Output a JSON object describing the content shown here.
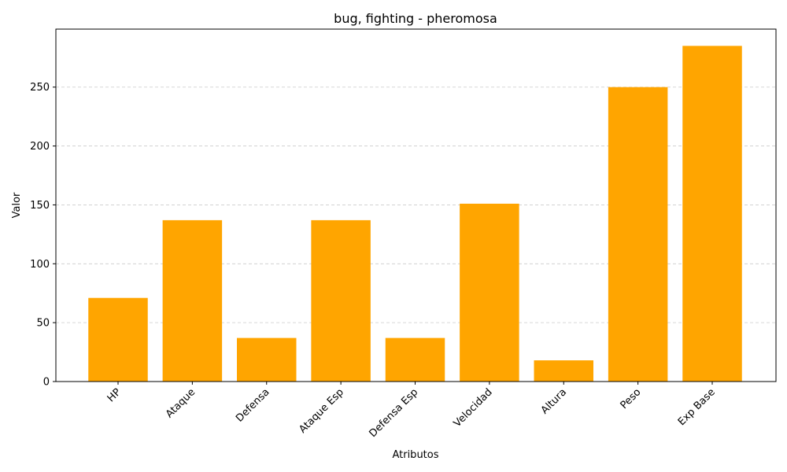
{
  "chart_data": {
    "type": "bar",
    "title": "bug, fighting - pheromosa",
    "xlabel": "Atributos",
    "ylabel": "Valor",
    "categories": [
      "HP",
      "Ataque",
      "Defensa",
      "Ataque Esp",
      "Defensa Esp",
      "Velocidad",
      "Altura",
      "Peso",
      "Exp Base"
    ],
    "values": [
      71,
      137,
      37,
      137,
      37,
      151,
      18,
      250,
      285
    ],
    "ylim": [
      0,
      299.25
    ],
    "yticks": [
      0,
      50,
      100,
      150,
      200,
      250
    ],
    "grid": "y-dashed",
    "bar_color": "#ffa500",
    "legend": "none"
  }
}
